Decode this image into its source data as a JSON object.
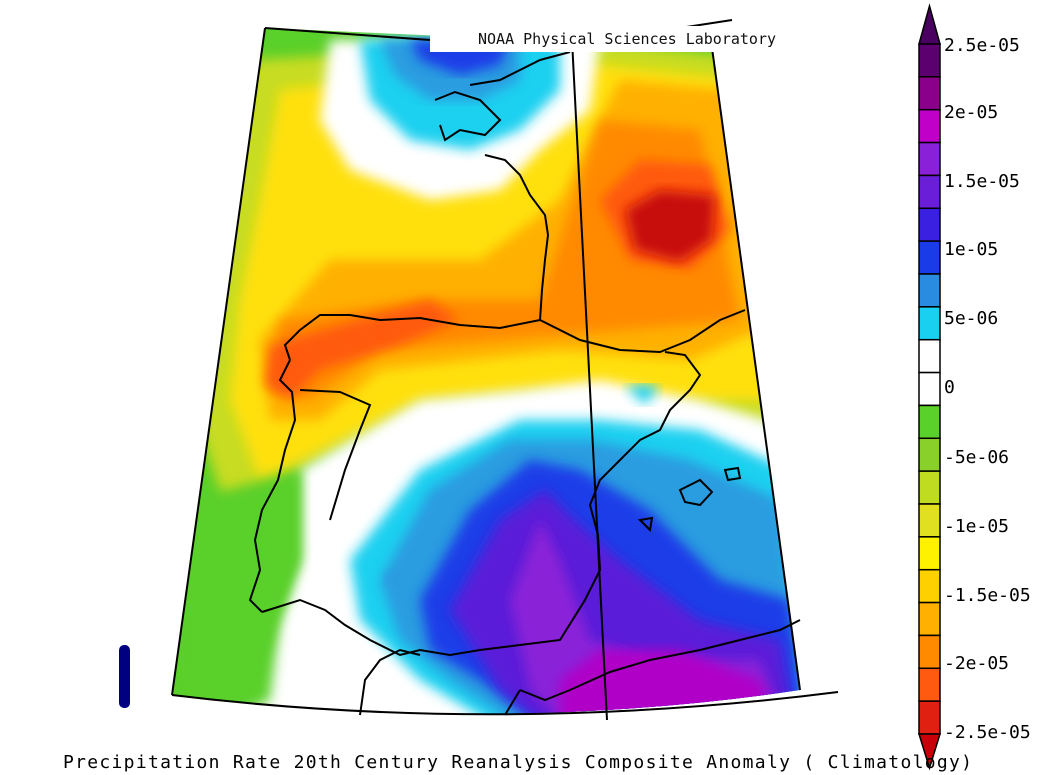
{
  "credit": "NOAA Physical Sciences Laboratory",
  "caption": "Precipitation Rate 20th Century Reanalysis Composite Anomaly ( Climatology)",
  "legend": {
    "labels": [
      "2.5e-05",
      "2e-05",
      "1.5e-05",
      "1e-05",
      "5e-06",
      "0",
      "-5e-06",
      "-1e-05",
      "-1.5e-05",
      "-2e-05",
      "-2.5e-05"
    ],
    "colors_top_to_bottom": [
      "#5c0070",
      "#8a008a",
      "#c000c8",
      "#8a20d8",
      "#6a1ed8",
      "#3a20e0",
      "#1a3ce8",
      "#2a8ce0",
      "#1ad0f0",
      "#ffffff",
      "#ffffff",
      "#5ad02a",
      "#8ad02a",
      "#c0dc20",
      "#e0e020",
      "#fff200",
      "#ffd000",
      "#ffb000",
      "#ff8a00",
      "#ff5a10",
      "#e02010"
    ],
    "arrow_top_color": "#4a0060",
    "arrow_bottom_color": "#c8000a"
  },
  "map": {
    "anomaly_colors": {
      "strong_negative": "#c8100a",
      "orange_red": "#ff5a10",
      "orange": "#ff8a00",
      "amber": "#ffb000",
      "yellow": "#ffe010",
      "yellow_green": "#c8dc20",
      "green": "#5ad02a",
      "white": "#ffffff",
      "cyan": "#1ad0f0",
      "light_blue": "#2a9ce0",
      "blue": "#1a3ce8",
      "indigo": "#5a1ed8",
      "violet": "#8a20d8",
      "magenta": "#b000c8"
    }
  }
}
